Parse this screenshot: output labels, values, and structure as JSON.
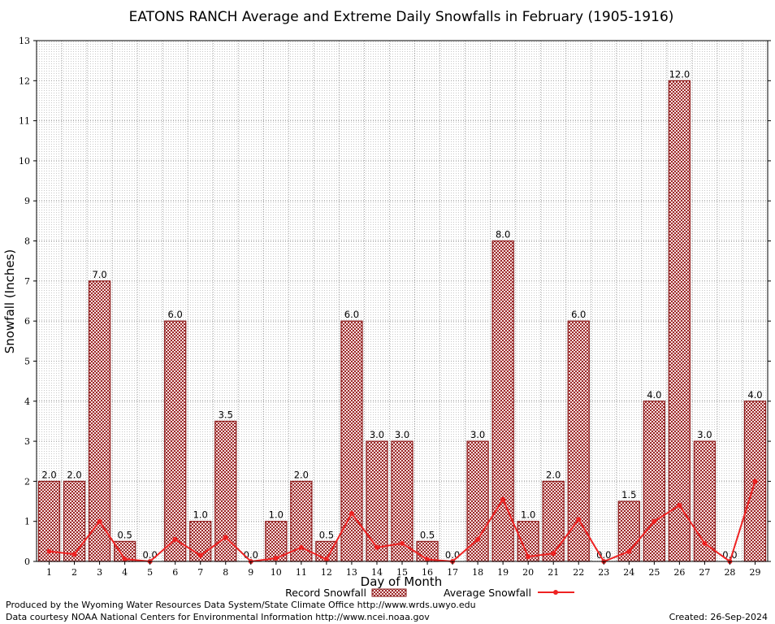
{
  "chart_data": {
    "type": "bar",
    "title": "EATONS RANCH Average and Extreme Daily Snowfalls in February (1905-1916)",
    "xlabel": "Day of Month",
    "ylabel": "Snowfall (Inches)",
    "ylim": [
      0,
      13
    ],
    "yticks": [
      0,
      1,
      2,
      3,
      4,
      5,
      6,
      7,
      8,
      9,
      10,
      11,
      12,
      13
    ],
    "categories": [
      "1",
      "2",
      "3",
      "4",
      "5",
      "6",
      "7",
      "8",
      "9",
      "10",
      "11",
      "12",
      "13",
      "14",
      "15",
      "16",
      "17",
      "18",
      "19",
      "20",
      "21",
      "22",
      "23",
      "24",
      "25",
      "26",
      "27",
      "28",
      "29"
    ],
    "series": [
      {
        "name": "Record Snowfall",
        "kind": "bar",
        "color": "#8b1a1a",
        "values": [
          2.0,
          2.0,
          7.0,
          0.5,
          0.0,
          6.0,
          1.0,
          3.5,
          0.0,
          1.0,
          2.0,
          0.5,
          6.0,
          3.0,
          3.0,
          0.5,
          0.0,
          3.0,
          8.0,
          1.0,
          2.0,
          6.0,
          0.0,
          1.5,
          4.0,
          12.0,
          3.0,
          0.0,
          4.0
        ],
        "labels": [
          "2.0",
          "2.0",
          "7.0",
          "0.5",
          "0.0",
          "6.0",
          "1.0",
          "3.5",
          "0.0",
          "1.0",
          "2.0",
          "0.5",
          "6.0",
          "3.0",
          "3.0",
          "0.5",
          "0.0",
          "3.0",
          "8.0",
          "1.0",
          "2.0",
          "6.0",
          "0.0",
          "1.5",
          "4.0",
          "12.0",
          "3.0",
          "0.0",
          "4.0"
        ]
      },
      {
        "name": "Average Snowfall",
        "kind": "line",
        "color": "#ee2222",
        "values": [
          0.25,
          0.18,
          1.0,
          0.06,
          0.0,
          0.55,
          0.15,
          0.6,
          0.0,
          0.08,
          0.35,
          0.05,
          1.2,
          0.35,
          0.45,
          0.05,
          0.0,
          0.55,
          1.55,
          0.12,
          0.2,
          1.05,
          0.0,
          0.25,
          1.0,
          1.4,
          0.45,
          0.0,
          2.0
        ]
      }
    ],
    "grid": true,
    "legend": "bottom-center"
  },
  "footer": {
    "produced_by": "Produced by the Wyoming Water Resources Data System/State Climate Office http://www.wrds.uwyo.edu",
    "courtesy": "Data courtesy NOAA National Centers for Environmental Information http://www.ncei.noaa.gov",
    "created": "Created:  26-Sep-2024"
  }
}
